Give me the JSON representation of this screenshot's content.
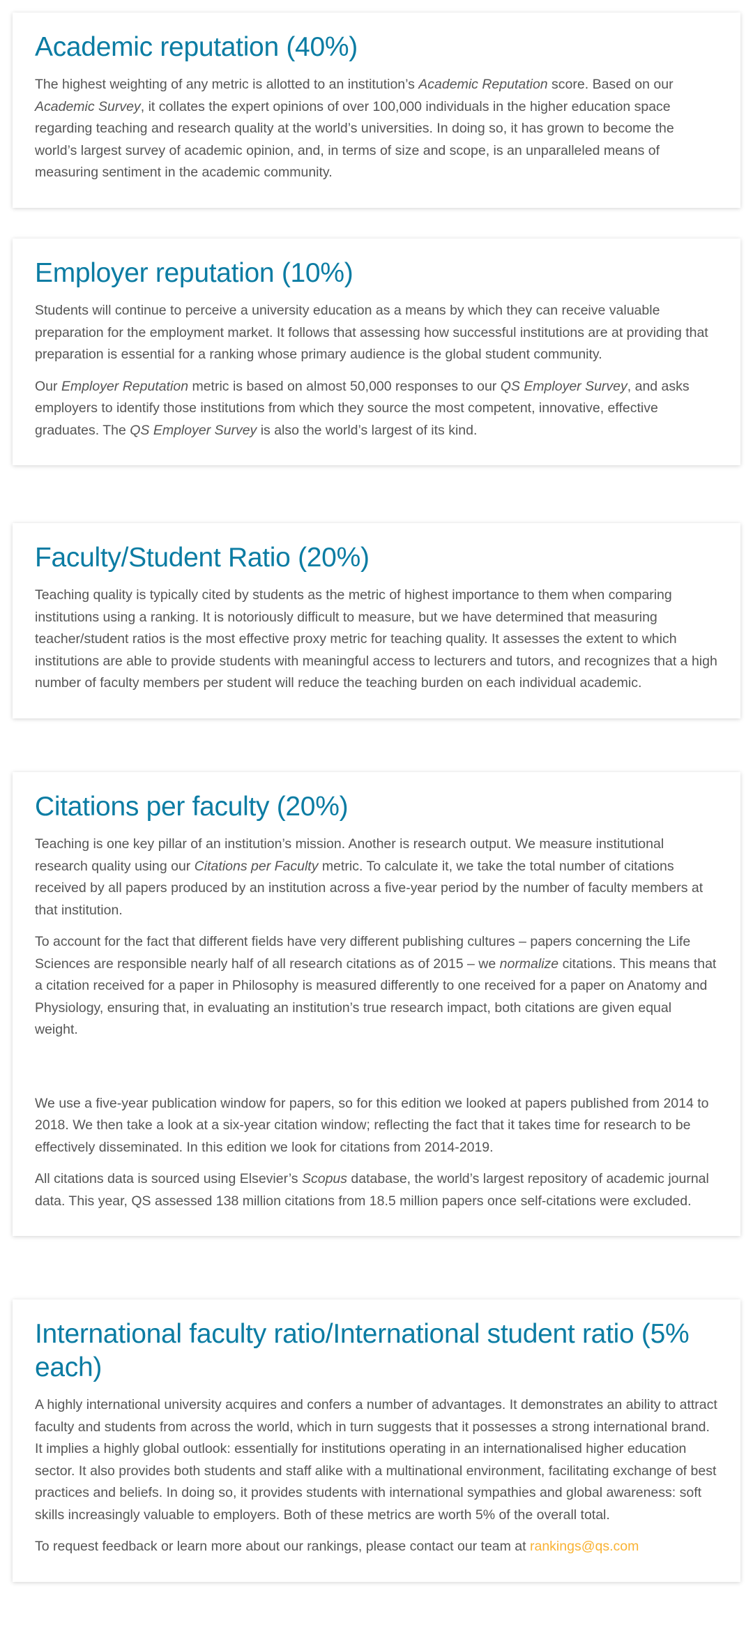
{
  "colors": {
    "heading": "#0b7ca3",
    "body": "#555555",
    "link": "#f9b233"
  },
  "sections": [
    {
      "title": "Academic reputation (40%)",
      "paragraphs": [
        [
          {
            "t": "The highest weighting of any metric is allotted to an institution’s "
          },
          {
            "t": "Academic Reputation",
            "i": true
          },
          {
            "t": " score. Based on our "
          },
          {
            "t": "Academic Survey",
            "i": true
          },
          {
            "t": ", it collates the expert opinions of over 100,000 individuals in the higher education space regarding teaching and research quality at the world’s universities. In doing so, it has grown to become the world’s largest survey of academic opinion, and, in terms of size and scope, is an unparalleled means of measuring sentiment in the academic community."
          }
        ]
      ]
    },
    {
      "title": "Employer reputation (10%)",
      "paragraphs": [
        [
          {
            "t": "Students will continue to perceive a university education as a means by which they can receive valuable preparation for the employment market. It follows that assessing how successful institutions are at providing that preparation is essential for a ranking whose primary audience is the global student community."
          }
        ],
        [
          {
            "t": "Our "
          },
          {
            "t": "Employer Reputation",
            "i": true
          },
          {
            "t": " metric is based on almost 50,000 responses to our "
          },
          {
            "t": "QS Employer Survey",
            "i": true
          },
          {
            "t": ", and asks employers to identify those institutions from which they source the most competent, innovative, effective graduates. The "
          },
          {
            "t": "QS Employer Survey",
            "i": true
          },
          {
            "t": " is also the world’s largest of its kind."
          }
        ]
      ]
    },
    {
      "title": "Faculty/Student Ratio (20%)",
      "paragraphs": [
        [
          {
            "t": "Teaching quality is typically cited by students as the metric of highest importance to them when comparing institutions using a ranking. It is notoriously difficult to measure, but we have determined that measuring teacher/student ratios is the most effective proxy metric for teaching quality. It assesses the extent to which institutions are able to provide students with meaningful access to lecturers and tutors, and recognizes that a high number of faculty members per student will reduce the teaching burden on each individual academic."
          }
        ]
      ]
    },
    {
      "title": "Citations per faculty (20%)",
      "paragraphs": [
        [
          {
            "t": "Teaching is one key pillar of an institution’s mission. Another is research output. We measure institutional research quality using our "
          },
          {
            "t": "Citations per Faculty",
            "i": true
          },
          {
            "t": " metric. To calculate it, we take the total number of citations received by all papers produced by an institution across a five-year period by the number of faculty members at that institution."
          }
        ],
        [
          {
            "t": "To account for the fact that different fields have very different publishing cultures – papers concerning the Life Sciences are responsible nearly half of all research citations as of 2015 – we "
          },
          {
            "t": "normalize",
            "i": true
          },
          {
            "t": " citations. This means that a citation received for a paper in Philosophy is measured differently to one received for a paper on Anatomy and Physiology, ensuring that, in evaluating an institution’s true research impact, both citations are given equal weight."
          }
        ],
        [],
        [
          {
            "t": "We use a five-year publication window for papers, so for this edition we looked at papers published from 2014 to 2018. We then take a look at a six-year citation window; reflecting the fact that it takes time for research to be effectively disseminated. In this edition we look for citations from 2014-2019."
          }
        ],
        [
          {
            "t": "All citations data is sourced using Elsevier’s "
          },
          {
            "t": "Scopus",
            "i": true
          },
          {
            "t": " database, the world’s largest repository of academic journal data. This year, QS assessed 138 million citations from 18.5 million papers once self-citations were excluded."
          }
        ]
      ]
    },
    {
      "title": "International faculty ratio/International student ratio (5% each)",
      "paragraphs": [
        [
          {
            "t": "A highly international university acquires and confers a number of advantages. It demonstrates an ability to attract faculty and students from across the world, which in turn suggests that it possesses a strong international brand. It implies a highly global outlook: essentially for institutions operating in an internationalised higher education sector. It also provides both students and staff alike with a multinational environment, facilitating exchange of best practices and beliefs. In doing so, it provides students with international sympathies and global awareness: soft skills increasingly valuable to employers. Both of these metrics are worth 5% of the overall total."
          }
        ],
        [
          {
            "t": "To request feedback or learn more about our rankings, please contact our team at "
          },
          {
            "t": "rankings@qs.com",
            "link": true
          }
        ]
      ]
    }
  ]
}
